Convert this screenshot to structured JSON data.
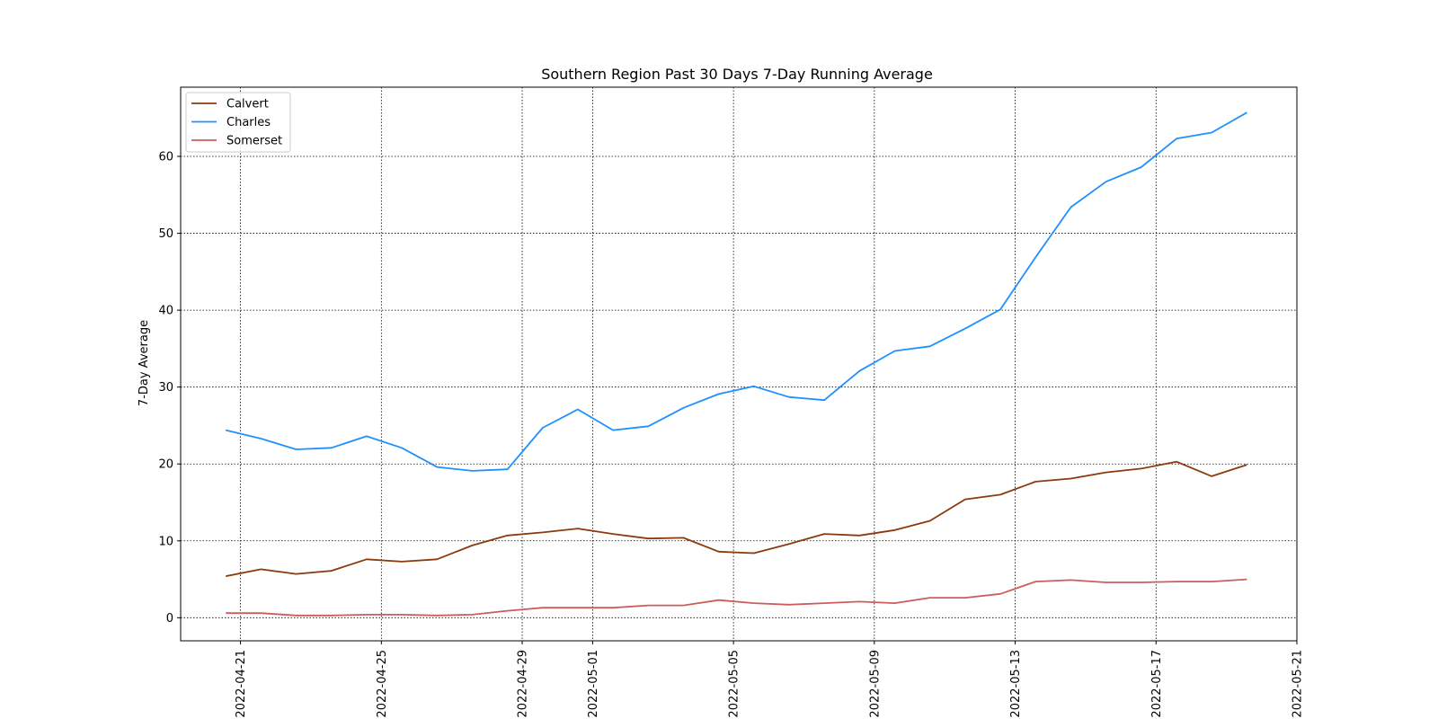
{
  "chart_data": {
    "type": "line",
    "title": "Southern Region Past 30 Days 7-Day Running Average",
    "xlabel": "",
    "ylabel": "7-Day Average",
    "x": [
      "2022-04-20",
      "2022-04-21",
      "2022-04-22",
      "2022-04-23",
      "2022-04-24",
      "2022-04-25",
      "2022-04-26",
      "2022-04-27",
      "2022-04-28",
      "2022-04-29",
      "2022-04-30",
      "2022-05-01",
      "2022-05-02",
      "2022-05-03",
      "2022-05-04",
      "2022-05-05",
      "2022-05-06",
      "2022-05-07",
      "2022-05-08",
      "2022-05-09",
      "2022-05-10",
      "2022-05-11",
      "2022-05-12",
      "2022-05-13",
      "2022-05-14",
      "2022-05-15",
      "2022-05-16",
      "2022-05-17",
      "2022-05-18",
      "2022-05-19",
      "2022-05-20"
    ],
    "series": [
      {
        "name": "Calvert",
        "color": "#8B3A0F",
        "values": [
          5.4,
          6.3,
          5.7,
          6.1,
          7.6,
          7.3,
          7.6,
          9.4,
          10.7,
          11.1,
          11.6,
          10.9,
          10.3,
          10.4,
          8.6,
          8.4,
          9.6,
          10.9,
          10.7,
          11.4,
          12.6,
          15.4,
          16.0,
          17.7,
          18.1,
          18.9,
          19.4,
          20.3,
          18.4,
          19.9,
          null
        ]
      },
      {
        "name": "Charles",
        "color": "#1E90FF",
        "values": [
          24.4,
          23.3,
          21.9,
          22.1,
          23.6,
          22.1,
          19.6,
          19.1,
          19.3,
          24.7,
          27.1,
          24.4,
          24.9,
          27.3,
          29.1,
          30.1,
          28.7,
          28.3,
          32.1,
          34.7,
          35.3,
          37.6,
          40.1,
          46.9,
          53.4,
          56.7,
          58.6,
          62.3,
          63.1,
          65.7,
          null
        ]
      },
      {
        "name": "Somerset",
        "color": "#CD5C5C",
        "values": [
          0.6,
          0.6,
          0.3,
          0.3,
          0.4,
          0.4,
          0.3,
          0.4,
          0.9,
          1.3,
          1.3,
          1.3,
          1.6,
          1.6,
          2.3,
          1.9,
          1.7,
          1.9,
          2.1,
          1.9,
          2.6,
          2.6,
          3.1,
          4.7,
          4.9,
          4.6,
          4.6,
          4.7,
          4.7,
          5.0,
          null
        ]
      }
    ],
    "x_ticks": [
      "2022-04-21",
      "2022-04-25",
      "2022-04-29",
      "2022-05-01",
      "2022-05-05",
      "2022-05-09",
      "2022-05-13",
      "2022-05-17",
      "2022-05-21"
    ],
    "y_ticks": [
      0,
      10,
      20,
      30,
      40,
      50,
      60
    ],
    "xlim": [
      "2022-04-19.3",
      "2022-05-21"
    ],
    "ylim": [
      -3,
      69
    ],
    "grid": true,
    "legend": "top-left"
  }
}
